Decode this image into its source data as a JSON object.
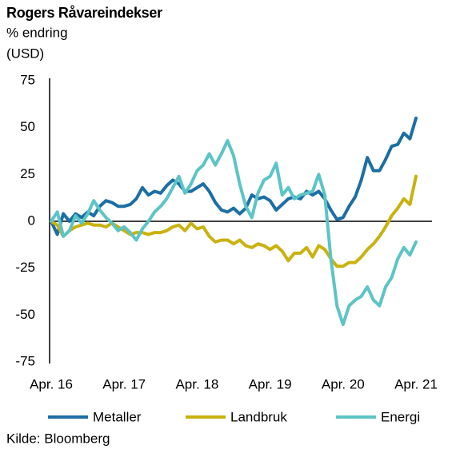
{
  "chart_data": {
    "type": "line",
    "title": "Rogers Råvareindekser",
    "subtitle": "% endring",
    "unit": "(USD)",
    "source": "Kilde: Bloomberg",
    "categories": [
      "Apr. 16",
      null,
      null,
      null,
      null,
      null,
      null,
      null,
      null,
      null,
      null,
      null,
      "Apr. 17",
      null,
      null,
      null,
      null,
      null,
      null,
      null,
      null,
      null,
      null,
      null,
      "Apr. 18",
      null,
      null,
      null,
      null,
      null,
      null,
      null,
      null,
      null,
      null,
      null,
      "Apr. 19",
      null,
      null,
      null,
      null,
      null,
      null,
      null,
      null,
      null,
      null,
      null,
      "Apr. 20",
      null,
      null,
      null,
      null,
      null,
      null,
      null,
      null,
      null,
      null,
      null,
      "Apr. 21"
    ],
    "series": [
      {
        "name": "Metaller",
        "color": "#1c6ea4",
        "values": [
          0,
          -7,
          4,
          0,
          4,
          2,
          5,
          3,
          8,
          11,
          10,
          8,
          8,
          9,
          12,
          18,
          14,
          16,
          15,
          19,
          22,
          20,
          16,
          16,
          18,
          20,
          16,
          10,
          6,
          5,
          7,
          4,
          7,
          14,
          12,
          13,
          11,
          6,
          9,
          12,
          13,
          12,
          16,
          14,
          16,
          12,
          6,
          1,
          2,
          8,
          13,
          22,
          34,
          27,
          27,
          33,
          40,
          41,
          47,
          44,
          55
        ]
      },
      {
        "name": "Landbruk",
        "color": "#c9b20f",
        "values": [
          0,
          -2,
          -8,
          -5,
          -3,
          -2,
          -1,
          -2,
          -2,
          -3,
          -1,
          -3,
          -5,
          -7,
          -6,
          -6,
          -7,
          -6,
          -6,
          -5,
          -3,
          -2,
          -5,
          -1,
          -4,
          -3,
          -8,
          -11,
          -10,
          -10,
          -12,
          -10,
          -13,
          -14,
          -12,
          -13,
          -15,
          -13,
          -16,
          -21,
          -17,
          -17,
          -14,
          -19,
          -13,
          -15,
          -20,
          -24,
          -24,
          -22,
          -22,
          -19,
          -15,
          -12,
          -8,
          -3,
          3,
          7,
          12,
          9,
          24
        ]
      },
      {
        "name": "Energi",
        "color": "#5cc4c6",
        "values": [
          0,
          5,
          -8,
          -5,
          3,
          -1,
          4,
          11,
          6,
          2,
          -1,
          -5,
          -3,
          -6,
          -10,
          -4,
          0,
          5,
          8,
          12,
          18,
          24,
          15,
          20,
          27,
          30,
          36,
          30,
          36,
          43,
          35,
          20,
          8,
          2,
          15,
          22,
          24,
          31,
          14,
          18,
          12,
          14,
          15,
          16,
          25,
          14,
          -20,
          -45,
          -55,
          -45,
          -42,
          -40,
          -35,
          -42,
          -45,
          -35,
          -30,
          -20,
          -14,
          -18,
          -11
        ]
      }
    ],
    "ylim": [
      -75,
      75
    ],
    "yticks": [
      -75,
      -50,
      -25,
      0,
      25,
      50,
      75
    ],
    "grid": false
  }
}
